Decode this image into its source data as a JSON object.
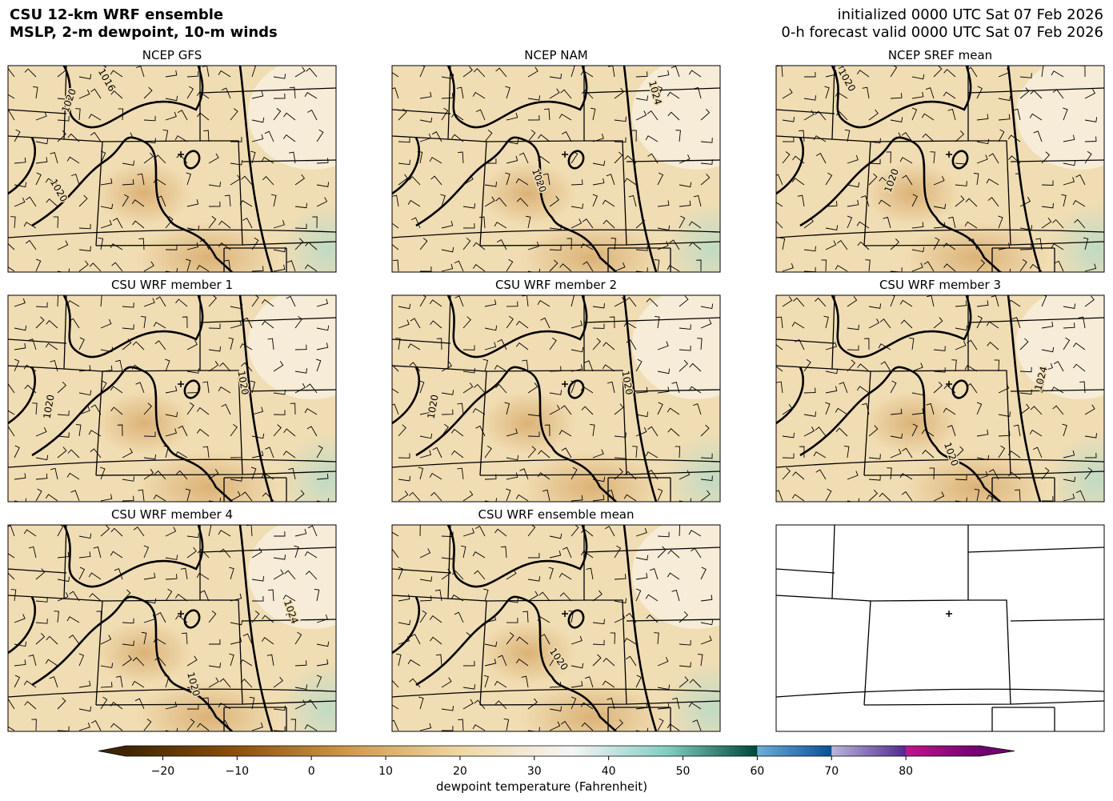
{
  "header": {
    "title": "CSU 12-km WRF ensemble",
    "subtitle": "MSLP, 2-m dewpoint, 10-m winds",
    "initialized": "initialized 0000 UTC Sat 07 Feb 2026",
    "valid": "0-h forecast valid 0000 UTC Sat 07 Feb 2026"
  },
  "panels": [
    {
      "title": "NCEP GFS",
      "contour_labels": [
        "1016",
        "1020",
        "1020"
      ]
    },
    {
      "title": "NCEP NAM",
      "contour_labels": [
        "1024",
        "1020"
      ]
    },
    {
      "title": "NCEP SREF mean",
      "contour_labels": [
        "1020",
        "1020"
      ]
    },
    {
      "title": "CSU WRF member 1",
      "contour_labels": [
        "1020",
        "1020"
      ]
    },
    {
      "title": "CSU WRF member 2",
      "contour_labels": [
        "1020",
        "1020"
      ]
    },
    {
      "title": "CSU WRF member 3",
      "contour_labels": [
        "1024",
        "1020"
      ]
    },
    {
      "title": "CSU WRF member 4",
      "contour_labels": [
        "1024",
        "1020"
      ]
    },
    {
      "title": "CSU WRF ensemble mean",
      "contour_labels": [
        "1020"
      ]
    }
  ],
  "colorbar": {
    "label": "dewpoint temperature (Fahrenheit)",
    "lim": [
      -25,
      90
    ],
    "ticks": [
      {
        "value": -20,
        "label": "−20"
      },
      {
        "value": -10,
        "label": "−10"
      },
      0,
      10,
      20,
      30,
      40,
      50,
      60,
      70,
      80
    ],
    "stops": [
      {
        "value": -25,
        "color": "#3f2403"
      },
      {
        "value": -10,
        "color": "#8c510a"
      },
      {
        "value": 5,
        "color": "#cf9a4a"
      },
      {
        "value": 20,
        "color": "#eed7a4"
      },
      {
        "value": 35,
        "color": "#f5f5f5"
      },
      {
        "value": 48,
        "color": "#80cdc1"
      },
      {
        "value": 60,
        "color": "#00463a"
      },
      {
        "value": 60,
        "color": "#6baed6"
      },
      {
        "value": 70,
        "color": "#08509b"
      },
      {
        "value": 70,
        "color": "#b7b7d9"
      },
      {
        "value": 80,
        "color": "#54278f"
      },
      {
        "value": 80,
        "color": "#c0158c"
      },
      {
        "value": 90,
        "color": "#70006f"
      }
    ]
  }
}
